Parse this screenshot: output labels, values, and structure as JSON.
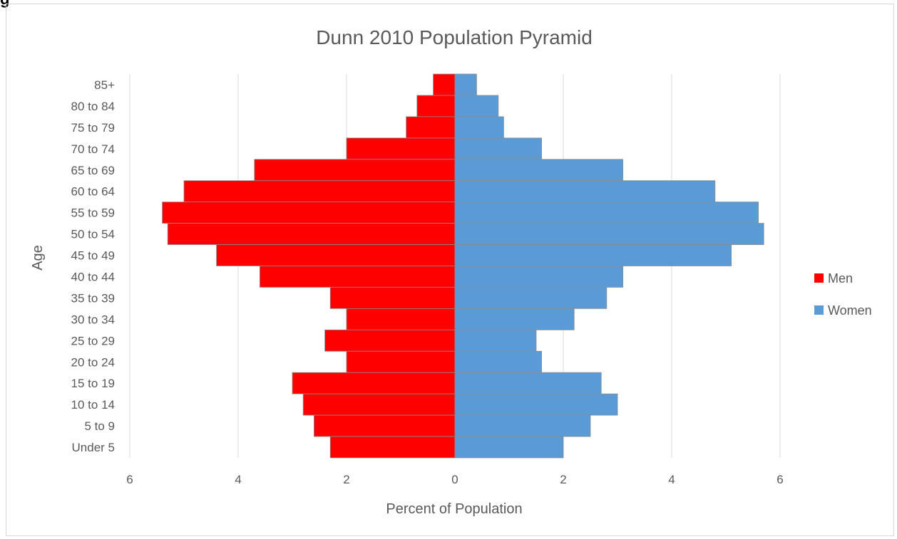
{
  "corner_mark": "g",
  "chart_data": {
    "type": "bar",
    "orientation": "horizontal",
    "title": "Dunn 2010 Population Pyramid",
    "xlabel": "Percent of Population",
    "ylabel": "Age",
    "xlim": [
      -6,
      6
    ],
    "xticks": [
      -6,
      -4,
      -2,
      0,
      2,
      4,
      6
    ],
    "xtick_labels": [
      "6",
      "4",
      "2",
      "0",
      "2",
      "4",
      "6"
    ],
    "grid": true,
    "legend_position": "right",
    "categories": [
      "85+",
      "80 to 84",
      "75 to 79",
      "70 to 74",
      "65 to 69",
      "60 to 64",
      "55 to 59",
      "50 to 54",
      "45 to 49",
      "40 to 44",
      "35 to 39",
      "30 to 34",
      "25 to 29",
      "20 to 24",
      "15 to 19",
      "10 to 14",
      "5 to 9",
      "Under 5"
    ],
    "series": [
      {
        "name": "Men",
        "color": "#ff0000",
        "direction": "left",
        "values": [
          0.4,
          0.7,
          0.9,
          2.0,
          3.7,
          5.0,
          5.4,
          5.3,
          4.4,
          3.6,
          2.3,
          2.0,
          2.4,
          2.0,
          3.0,
          2.8,
          2.6,
          2.3
        ]
      },
      {
        "name": "Women",
        "color": "#5b9bd5",
        "direction": "right",
        "values": [
          0.4,
          0.8,
          0.9,
          1.6,
          3.1,
          4.8,
          5.6,
          5.7,
          5.1,
          3.1,
          2.8,
          2.2,
          1.5,
          1.6,
          2.7,
          3.0,
          2.5,
          2.0
        ]
      }
    ]
  }
}
